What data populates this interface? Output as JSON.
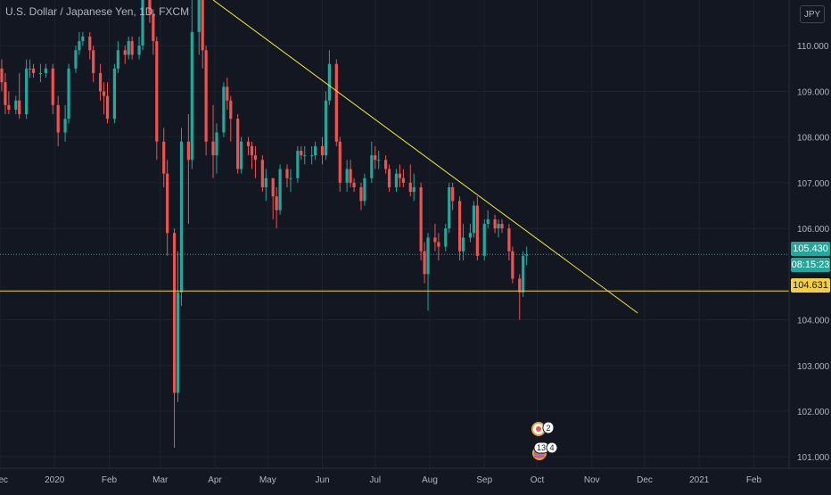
{
  "header": {
    "symbol_title": "U.S. Dollar / Japanese Yen, 1D, FXCM",
    "currency": "JPY"
  },
  "price_axis": {
    "ticks": [
      "110.000",
      "109.000",
      "108.000",
      "107.000",
      "106.000",
      "104.000",
      "103.000",
      "102.000",
      "101.000"
    ]
  },
  "tags": {
    "last_price": "105.430",
    "countdown": "08:15:23",
    "support_level": "104.631"
  },
  "events": {
    "event_a_count": "2",
    "event_b_count": "13",
    "event_c_count": "4"
  },
  "chart_data": {
    "type": "candlestick",
    "title": "U.S. Dollar / Japanese Yen, 1D, FXCM",
    "ylim": [
      100.75,
      111.0
    ],
    "xlim": [
      "2019-12-01",
      "2021-02-21"
    ],
    "x_ticks": [
      {
        "label": "Dec",
        "date": "2019-12-01"
      },
      {
        "label": "2020",
        "date": "2020-01-01"
      },
      {
        "label": "Feb",
        "date": "2020-02-01"
      },
      {
        "label": "Mar",
        "date": "2020-03-01"
      },
      {
        "label": "Apr",
        "date": "2020-04-01"
      },
      {
        "label": "May",
        "date": "2020-05-01"
      },
      {
        "label": "Jun",
        "date": "2020-06-01"
      },
      {
        "label": "Jul",
        "date": "2020-07-01"
      },
      {
        "label": "Aug",
        "date": "2020-08-01"
      },
      {
        "label": "Sep",
        "date": "2020-09-01"
      },
      {
        "label": "Oct",
        "date": "2020-10-01"
      },
      {
        "label": "Nov",
        "date": "2020-11-01"
      },
      {
        "label": "Dec",
        "date": "2020-12-01"
      },
      {
        "label": "2021",
        "date": "2021-01-01"
      },
      {
        "label": "Feb",
        "date": "2021-02-01"
      }
    ],
    "y_ticks": [
      110.0,
      109.0,
      108.0,
      107.0,
      106.0,
      104.0,
      103.0,
      102.0,
      101.0
    ],
    "grid": true,
    "colors": {
      "up": "#26a69a",
      "down": "#ef5350",
      "background": "#131722",
      "grid": "#1e222d",
      "trendline": "#f5e93a",
      "support": "#f5d03a",
      "last": "#26a69a"
    },
    "candles": [
      [
        "2019-12-02",
        109.5,
        109.7,
        109.0,
        109.2
      ],
      [
        "2019-12-04",
        109.2,
        109.4,
        108.5,
        108.7
      ],
      [
        "2019-12-06",
        108.7,
        109.0,
        108.5,
        108.6
      ],
      [
        "2019-12-10",
        108.6,
        108.9,
        108.5,
        108.8
      ],
      [
        "2019-12-12",
        108.8,
        109.4,
        108.4,
        108.5
      ],
      [
        "2019-12-16",
        108.5,
        109.7,
        108.4,
        109.5
      ],
      [
        "2019-12-18",
        109.5,
        109.7,
        109.3,
        109.5
      ],
      [
        "2019-12-20",
        109.5,
        109.6,
        109.3,
        109.4
      ],
      [
        "2019-12-24",
        109.4,
        109.6,
        109.2,
        109.4
      ],
      [
        "2019-12-27",
        109.4,
        109.6,
        109.3,
        109.5
      ],
      [
        "2019-12-31",
        109.5,
        109.6,
        108.5,
        108.7
      ],
      [
        "2020-01-03",
        108.7,
        108.9,
        107.8,
        108.1
      ],
      [
        "2020-01-07",
        108.1,
        108.7,
        107.9,
        108.4
      ],
      [
        "2020-01-09",
        108.4,
        109.6,
        108.3,
        109.5
      ],
      [
        "2020-01-13",
        109.5,
        110.0,
        109.4,
        109.9
      ],
      [
        "2020-01-15",
        109.9,
        110.3,
        109.8,
        110.1
      ],
      [
        "2020-01-17",
        110.1,
        110.3,
        110.0,
        110.2
      ],
      [
        "2020-01-21",
        110.2,
        110.3,
        109.7,
        109.9
      ],
      [
        "2020-01-23",
        109.9,
        110.0,
        109.2,
        109.4
      ],
      [
        "2020-01-27",
        109.4,
        109.6,
        108.8,
        109.0
      ],
      [
        "2020-01-29",
        109.0,
        109.2,
        108.5,
        108.9
      ],
      [
        "2020-01-31",
        108.9,
        109.2,
        108.3,
        108.4
      ],
      [
        "2020-02-04",
        108.4,
        109.6,
        108.3,
        109.5
      ],
      [
        "2020-02-06",
        109.5,
        110.1,
        109.4,
        109.9
      ],
      [
        "2020-02-10",
        109.9,
        110.0,
        109.6,
        109.8
      ],
      [
        "2020-02-12",
        109.8,
        110.2,
        109.7,
        110.1
      ],
      [
        "2020-02-14",
        110.1,
        110.2,
        109.7,
        109.8
      ],
      [
        "2020-02-18",
        109.8,
        110.2,
        109.7,
        110.0
      ],
      [
        "2020-02-20",
        110.0,
        112.2,
        109.9,
        111.9
      ],
      [
        "2020-02-24",
        111.9,
        112.0,
        110.5,
        110.7
      ],
      [
        "2020-02-26",
        110.7,
        110.8,
        109.8,
        110.1
      ],
      [
        "2020-02-28",
        110.1,
        110.2,
        107.5,
        107.9
      ],
      [
        "2020-03-03",
        107.9,
        108.2,
        106.9,
        107.2
      ],
      [
        "2020-03-05",
        107.2,
        107.5,
        105.4,
        105.9
      ],
      [
        "2020-03-09",
        105.9,
        106.0,
        101.2,
        102.4
      ],
      [
        "2020-03-11",
        102.4,
        105.5,
        102.2,
        104.6
      ],
      [
        "2020-03-13",
        104.6,
        108.2,
        104.3,
        107.9
      ],
      [
        "2020-03-17",
        107.9,
        108.5,
        106.1,
        107.5
      ],
      [
        "2020-03-19",
        107.5,
        111.0,
        107.3,
        110.3
      ],
      [
        "2020-03-23",
        110.3,
        111.7,
        109.8,
        111.2
      ],
      [
        "2020-03-25",
        111.2,
        111.4,
        109.5,
        109.9
      ],
      [
        "2020-03-27",
        109.9,
        110.0,
        107.6,
        107.9
      ],
      [
        "2020-03-31",
        107.9,
        108.7,
        107.1,
        107.6
      ],
      [
        "2020-04-02",
        107.6,
        108.3,
        107.2,
        108.1
      ],
      [
        "2020-04-06",
        108.1,
        109.2,
        108.0,
        109.1
      ],
      [
        "2020-04-08",
        109.1,
        109.3,
        108.6,
        108.8
      ],
      [
        "2020-04-10",
        108.8,
        108.9,
        107.9,
        108.4
      ],
      [
        "2020-04-14",
        108.4,
        108.5,
        107.2,
        107.3
      ],
      [
        "2020-04-16",
        107.3,
        108.0,
        107.2,
        107.9
      ],
      [
        "2020-04-20",
        107.9,
        108.0,
        107.6,
        107.8
      ],
      [
        "2020-04-22",
        107.8,
        107.9,
        107.3,
        107.6
      ],
      [
        "2020-04-24",
        107.6,
        107.8,
        107.1,
        107.5
      ],
      [
        "2020-04-28",
        107.5,
        107.6,
        106.8,
        106.9
      ],
      [
        "2020-04-30",
        106.9,
        107.3,
        106.6,
        107.1
      ],
      [
        "2020-05-04",
        107.1,
        107.1,
        106.2,
        106.7
      ],
      [
        "2020-05-06",
        106.7,
        106.9,
        106.0,
        106.4
      ],
      [
        "2020-05-08",
        106.4,
        107.4,
        106.3,
        107.3
      ],
      [
        "2020-05-12",
        107.3,
        107.4,
        106.9,
        107.1
      ],
      [
        "2020-05-14",
        107.1,
        107.3,
        106.8,
        107.1
      ],
      [
        "2020-05-18",
        107.1,
        107.8,
        107.0,
        107.7
      ],
      [
        "2020-05-20",
        107.7,
        107.8,
        107.5,
        107.6
      ],
      [
        "2020-05-22",
        107.6,
        107.8,
        107.4,
        107.6
      ],
      [
        "2020-05-26",
        107.6,
        107.8,
        107.4,
        107.6
      ],
      [
        "2020-05-28",
        107.6,
        107.9,
        107.5,
        107.8
      ],
      [
        "2020-06-01",
        107.8,
        108.0,
        107.4,
        107.6
      ],
      [
        "2020-06-03",
        107.6,
        109.0,
        107.5,
        108.8
      ],
      [
        "2020-06-05",
        108.8,
        109.9,
        108.7,
        109.6
      ],
      [
        "2020-06-09",
        109.6,
        109.7,
        107.8,
        107.9
      ],
      [
        "2020-06-11",
        107.9,
        108.0,
        106.8,
        107.0
      ],
      [
        "2020-06-15",
        107.0,
        107.5,
        106.8,
        107.3
      ],
      [
        "2020-06-17",
        107.3,
        107.5,
        106.9,
        107.0
      ],
      [
        "2020-06-19",
        107.0,
        107.1,
        106.8,
        106.9
      ],
      [
        "2020-06-23",
        106.9,
        107.0,
        106.4,
        106.6
      ],
      [
        "2020-06-25",
        106.6,
        107.2,
        106.5,
        107.1
      ],
      [
        "2020-06-29",
        107.1,
        107.9,
        107.0,
        107.6
      ],
      [
        "2020-07-01",
        107.6,
        107.8,
        107.3,
        107.5
      ],
      [
        "2020-07-03",
        107.5,
        107.7,
        107.3,
        107.5
      ],
      [
        "2020-07-07",
        107.5,
        107.6,
        107.2,
        107.3
      ],
      [
        "2020-07-09",
        107.3,
        107.4,
        106.8,
        106.9
      ],
      [
        "2020-07-13",
        106.9,
        107.3,
        106.8,
        107.2
      ],
      [
        "2020-07-15",
        107.2,
        107.4,
        106.9,
        107.1
      ],
      [
        "2020-07-17",
        107.1,
        107.3,
        106.9,
        107.0
      ],
      [
        "2020-07-21",
        107.0,
        107.4,
        106.7,
        106.8
      ],
      [
        "2020-07-23",
        106.8,
        107.2,
        106.6,
        106.9
      ],
      [
        "2020-07-27",
        106.9,
        107.0,
        105.3,
        105.5
      ],
      [
        "2020-07-29",
        105.5,
        105.7,
        104.8,
        105.0
      ],
      [
        "2020-07-31",
        105.0,
        105.9,
        104.2,
        105.8
      ],
      [
        "2020-08-04",
        105.8,
        106.1,
        105.5,
        105.7
      ],
      [
        "2020-08-06",
        105.7,
        105.9,
        105.3,
        105.6
      ],
      [
        "2020-08-10",
        105.6,
        106.1,
        105.5,
        106.0
      ],
      [
        "2020-08-12",
        106.0,
        107.0,
        105.9,
        106.9
      ],
      [
        "2020-08-14",
        106.9,
        107.0,
        106.4,
        106.6
      ],
      [
        "2020-08-18",
        106.6,
        106.7,
        105.3,
        105.5
      ],
      [
        "2020-08-20",
        105.5,
        106.1,
        105.3,
        105.8
      ],
      [
        "2020-08-24",
        105.8,
        106.1,
        105.7,
        105.9
      ],
      [
        "2020-08-26",
        105.9,
        106.6,
        105.8,
        106.5
      ],
      [
        "2020-08-28",
        106.5,
        106.7,
        105.3,
        105.4
      ],
      [
        "2020-09-01",
        105.4,
        106.2,
        105.3,
        106.1
      ],
      [
        "2020-09-03",
        106.1,
        106.4,
        106.0,
        106.2
      ],
      [
        "2020-09-07",
        106.2,
        106.3,
        105.9,
        106.0
      ],
      [
        "2020-09-09",
        106.0,
        106.2,
        105.8,
        106.1
      ],
      [
        "2020-09-11",
        106.1,
        106.2,
        105.9,
        106.0
      ],
      [
        "2020-09-15",
        106.0,
        106.1,
        105.3,
        105.5
      ],
      [
        "2020-09-17",
        105.5,
        105.6,
        104.8,
        104.9
      ],
      [
        "2020-09-21",
        104.9,
        105.0,
        104.0,
        104.6
      ],
      [
        "2020-09-23",
        104.6,
        105.5,
        104.5,
        105.4
      ],
      [
        "2020-09-25",
        105.4,
        105.6,
        105.2,
        105.43
      ]
    ],
    "trendline": {
      "from": {
        "date": "2020-03-31",
        "price": 111.0
      },
      "to": {
        "date": "2020-11-27",
        "price": 104.15
      }
    },
    "support_line": {
      "price": 104.631,
      "label": "104.631"
    },
    "last_price": {
      "price": 105.43,
      "label": "105.430"
    }
  }
}
